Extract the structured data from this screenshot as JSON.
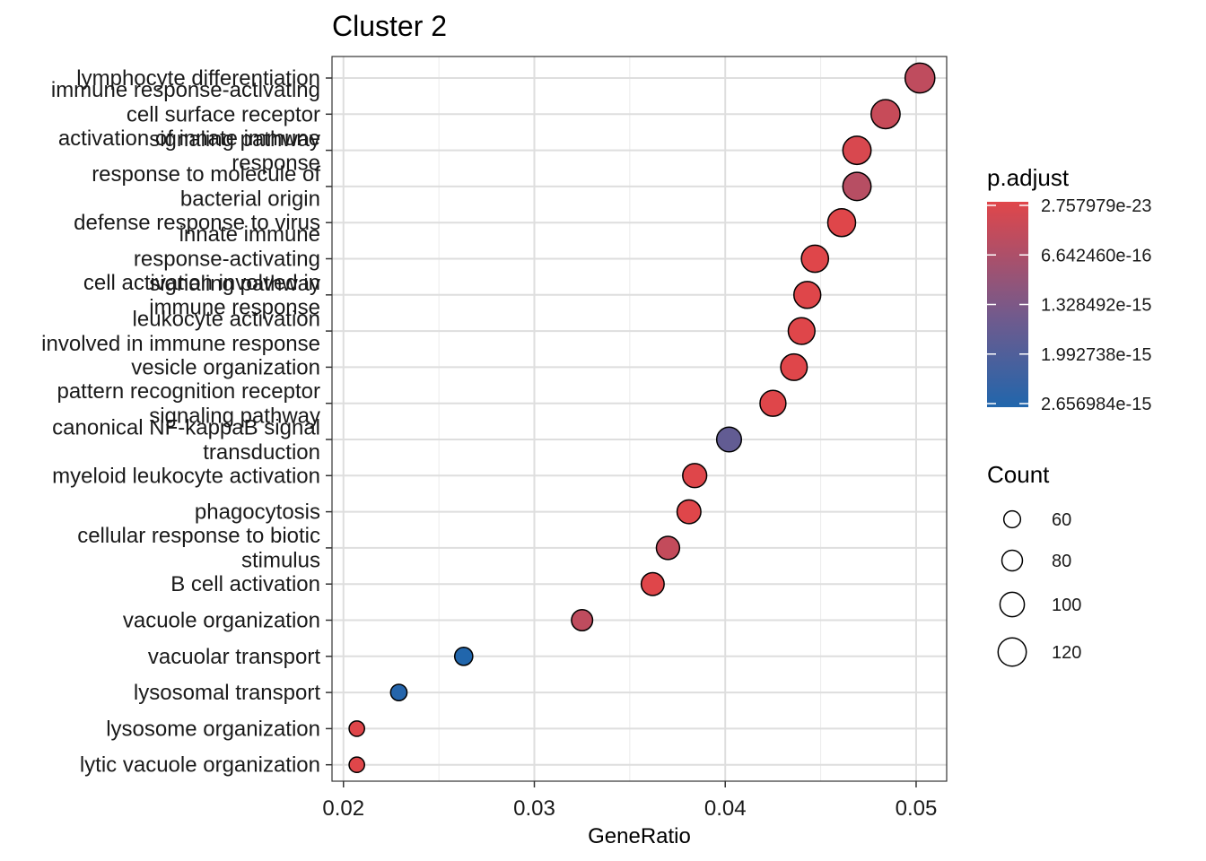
{
  "chart_data": {
    "type": "scatter",
    "title": "Cluster 2",
    "xlabel": "GeneRatio",
    "ylabel": "",
    "xlim": [
      0.0194,
      0.0516
    ],
    "x_ticks": [
      {
        "value": 0.02,
        "label": "0.02"
      },
      {
        "value": 0.03,
        "label": "0.03"
      },
      {
        "value": 0.04,
        "label": "0.04"
      },
      {
        "value": 0.05,
        "label": "0.05"
      }
    ],
    "grid": true,
    "points": [
      {
        "term": [
          "lymphocyte differentiation"
        ],
        "gene_ratio": 0.0502,
        "count": 128,
        "p_adjust": 4e-16
      },
      {
        "term": [
          "immune response-activating",
          "cell surface receptor",
          "signaling pathway"
        ],
        "gene_ratio": 0.0484,
        "count": 124,
        "p_adjust": 3e-16
      },
      {
        "term": [
          "activation of innate immune",
          "response"
        ],
        "gene_ratio": 0.0469,
        "count": 120,
        "p_adjust": 1e-16
      },
      {
        "term": [
          "response to molecule of",
          "bacterial origin"
        ],
        "gene_ratio": 0.0469,
        "count": 120,
        "p_adjust": 5e-16
      },
      {
        "term": [
          "defense response to virus"
        ],
        "gene_ratio": 0.0461,
        "count": 118,
        "p_adjust": 1e-17
      },
      {
        "term": [
          "innate immune",
          "response-activating",
          "signaling pathway"
        ],
        "gene_ratio": 0.0447,
        "count": 114,
        "p_adjust": 1e-17
      },
      {
        "term": [
          "cell activation involved in",
          "immune response"
        ],
        "gene_ratio": 0.0443,
        "count": 113,
        "p_adjust": 1e-17
      },
      {
        "term": [
          "leukocyte activation",
          "involved in immune response"
        ],
        "gene_ratio": 0.044,
        "count": 112,
        "p_adjust": 1e-17
      },
      {
        "term": [
          "vesicle organization"
        ],
        "gene_ratio": 0.0436,
        "count": 111,
        "p_adjust": 1e-17
      },
      {
        "term": [
          "pattern recognition receptor",
          "signaling pathway"
        ],
        "gene_ratio": 0.0425,
        "count": 108,
        "p_adjust": 1e-17
      },
      {
        "term": [
          "canonical NF-kappaB signal",
          "transduction"
        ],
        "gene_ratio": 0.0402,
        "count": 102,
        "p_adjust": 1.6e-15
      },
      {
        "term": [
          "myeloid leukocyte activation"
        ],
        "gene_ratio": 0.0384,
        "count": 98,
        "p_adjust": 1e-17
      },
      {
        "term": [
          "phagocytosis"
        ],
        "gene_ratio": 0.0381,
        "count": 97,
        "p_adjust": 1e-17
      },
      {
        "term": [
          "cellular response to biotic",
          "stimulus"
        ],
        "gene_ratio": 0.037,
        "count": 94,
        "p_adjust": 3.5e-16
      },
      {
        "term": [
          "B cell activation"
        ],
        "gene_ratio": 0.0362,
        "count": 92,
        "p_adjust": 1e-17
      },
      {
        "term": [
          "vacuole organization"
        ],
        "gene_ratio": 0.0325,
        "count": 83,
        "p_adjust": 4e-16
      },
      {
        "term": [
          "vacuolar transport"
        ],
        "gene_ratio": 0.0263,
        "count": 67,
        "p_adjust": 2.656984e-15
      },
      {
        "term": [
          "lysosomal transport"
        ],
        "gene_ratio": 0.0229,
        "count": 58,
        "p_adjust": 2.6e-15
      },
      {
        "term": [
          "lysosome organization"
        ],
        "gene_ratio": 0.0207,
        "count": 53,
        "p_adjust": 1e-17
      },
      {
        "term": [
          "lytic vacuole organization"
        ],
        "gene_ratio": 0.0207,
        "count": 53,
        "p_adjust": 1e-17
      }
    ],
    "color_legend": {
      "title": "p.adjust",
      "low_color": "#E0464A",
      "high_color": "#2166AC",
      "min_value": 2.757979e-23,
      "max_value": 2.656984e-15,
      "breaks": [
        {
          "value": 2.757979e-23,
          "label": "2.757979e-23"
        },
        {
          "value": 6.64246e-16,
          "label": "6.642460e-16"
        },
        {
          "value": 1.328492e-15,
          "label": "1.328492e-15"
        },
        {
          "value": 1.992738e-15,
          "label": "1.992738e-15"
        },
        {
          "value": 2.656984e-15,
          "label": "2.656984e-15"
        }
      ]
    },
    "size_legend": {
      "title": "Count",
      "breaks": [
        {
          "value": 60,
          "label": "60"
        },
        {
          "value": 80,
          "label": "80"
        },
        {
          "value": 100,
          "label": "100"
        },
        {
          "value": 120,
          "label": "120"
        }
      ]
    }
  }
}
